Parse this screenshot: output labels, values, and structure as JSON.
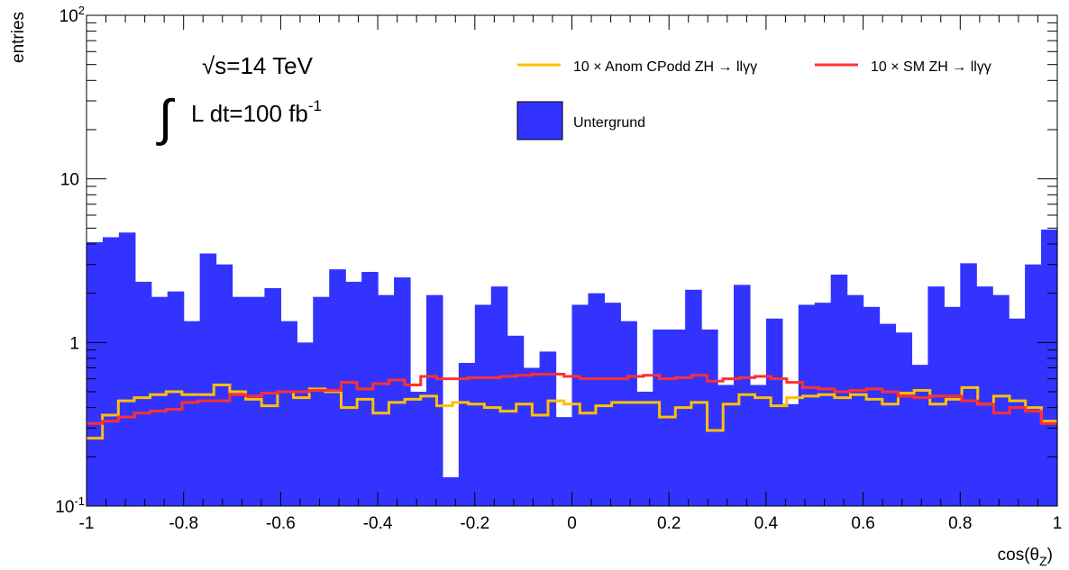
{
  "chart_data": {
    "type": "bar",
    "xlabel": "cos(θ_Z)",
    "ylabel": "entries",
    "xlim": [
      -1,
      1
    ],
    "ylim": [
      0.1,
      100
    ],
    "log_y": true,
    "grid": false,
    "x_ticks": [
      "-1",
      "-0.8",
      "-0.6",
      "-0.4",
      "-0.2",
      "0",
      "0.2",
      "0.4",
      "0.6",
      "0.8",
      "1"
    ],
    "y_ticks": [
      {
        "base": "10",
        "exp": "-1"
      },
      {
        "base": "1",
        "exp": ""
      },
      {
        "base": "10",
        "exp": ""
      },
      {
        "base": "10",
        "exp": "2"
      }
    ],
    "bin_edges_start": -1,
    "bin_width": 0.0333333,
    "series": [
      {
        "name": "Untergrund",
        "kind": "filled-histogram",
        "color": "#3333ff",
        "values": [
          4.1,
          4.4,
          4.7,
          2.35,
          1.9,
          2.05,
          1.35,
          3.5,
          3.0,
          1.9,
          1.9,
          2.15,
          1.35,
          1.0,
          1.9,
          2.8,
          2.35,
          2.7,
          1.95,
          2.5,
          0.5,
          1.95,
          0.15,
          0.75,
          1.7,
          2.2,
          1.1,
          0.7,
          0.88,
          0.35,
          1.7,
          2.0,
          1.75,
          1.35,
          0.5,
          1.2,
          1.2,
          2.1,
          1.2,
          0.55,
          2.25,
          0.55,
          1.4,
          0.42,
          1.7,
          1.75,
          2.6,
          1.95,
          1.65,
          1.3,
          1.15,
          0.73,
          2.2,
          1.65,
          3.05,
          2.2,
          1.95,
          1.4,
          3.0,
          4.9
        ]
      },
      {
        "name": "10 × Anom CPodd ZH → llγγ",
        "kind": "step-line",
        "color": "#ffc000",
        "values": [
          0.26,
          0.36,
          0.44,
          0.46,
          0.48,
          0.5,
          0.48,
          0.48,
          0.55,
          0.5,
          0.45,
          0.41,
          0.5,
          0.46,
          0.52,
          0.5,
          0.4,
          0.45,
          0.37,
          0.43,
          0.45,
          0.47,
          0.41,
          0.43,
          0.42,
          0.4,
          0.38,
          0.42,
          0.36,
          0.44,
          0.42,
          0.37,
          0.41,
          0.43,
          0.43,
          0.43,
          0.35,
          0.4,
          0.43,
          0.29,
          0.42,
          0.48,
          0.46,
          0.41,
          0.46,
          0.47,
          0.48,
          0.46,
          0.48,
          0.45,
          0.42,
          0.49,
          0.51,
          0.42,
          0.45,
          0.53,
          0.42,
          0.47,
          0.44,
          0.4,
          0.33
        ]
      },
      {
        "name": "10 × SM ZH → llγγ",
        "kind": "step-line",
        "color": "#ff3030",
        "values": [
          0.32,
          0.33,
          0.35,
          0.37,
          0.38,
          0.39,
          0.43,
          0.44,
          0.44,
          0.48,
          0.47,
          0.49,
          0.5,
          0.5,
          0.51,
          0.51,
          0.57,
          0.52,
          0.56,
          0.59,
          0.55,
          0.62,
          0.6,
          0.6,
          0.61,
          0.61,
          0.62,
          0.63,
          0.64,
          0.64,
          0.62,
          0.6,
          0.6,
          0.6,
          0.62,
          0.63,
          0.6,
          0.61,
          0.63,
          0.58,
          0.6,
          0.61,
          0.62,
          0.6,
          0.57,
          0.53,
          0.52,
          0.5,
          0.51,
          0.52,
          0.5,
          0.47,
          0.46,
          0.47,
          0.47,
          0.44,
          0.42,
          0.37,
          0.4,
          0.38,
          0.32
        ]
      }
    ],
    "annotations": [
      {
        "text": "√s=14 TeV"
      },
      {
        "text": "∫ L dt=100 fb",
        "sup": "-1"
      }
    ],
    "legend": {
      "placement": "top-right",
      "entries": [
        {
          "label": "10 × Anom CPodd ZH → llγγ",
          "kind": "line",
          "color": "#ffc000"
        },
        {
          "label": "10 × SM ZH → llγγ",
          "kind": "line",
          "color": "#ff3030"
        },
        {
          "label": "Untergrund",
          "kind": "fill",
          "color": "#3333ff"
        }
      ]
    }
  }
}
